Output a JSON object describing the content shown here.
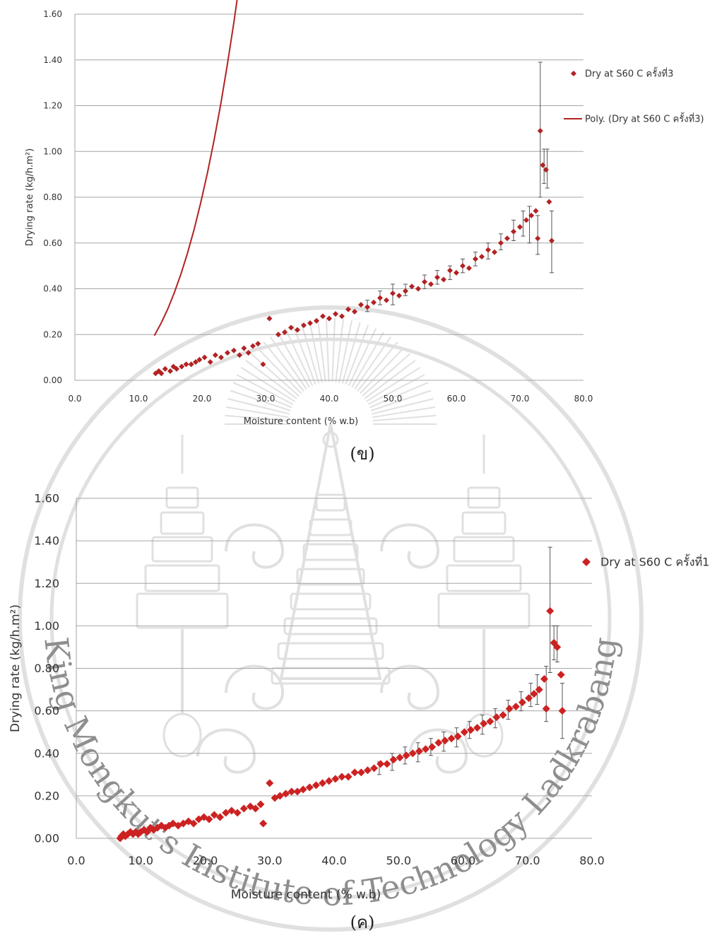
{
  "chart_data": [
    {
      "type": "scatter",
      "panel": "top",
      "caption": "(ข)",
      "title": "",
      "xlabel": "Moisture content (% w.b)",
      "ylabel": "Drying rate (kg/h.m²)",
      "xlim": [
        0,
        80
      ],
      "ylim": [
        0,
        1.6
      ],
      "x_ticks": [
        "0.0",
        "10.0",
        "20.0",
        "30.0",
        "40.0",
        "50.0",
        "60.0",
        "70.0",
        "80.0"
      ],
      "y_ticks": [
        "0.00",
        "0.20",
        "0.40",
        "0.60",
        "0.80",
        "1.00",
        "1.20",
        "1.40",
        "1.60"
      ],
      "grid": "horizontal",
      "legend_position": "right",
      "legend": [
        "Dry at S60 C ครั้งที่3",
        "Poly. (Dry at S60 C ครั้งที่3)"
      ],
      "series": [
        {
          "name": "Dry at S60 C ครั้งที่3",
          "kind": "points",
          "color": "#b22222",
          "points": [
            [
              12.7,
              0.03
            ],
            [
              13.2,
              0.04
            ],
            [
              13.6,
              0.03
            ],
            [
              14.2,
              0.05
            ],
            [
              15.0,
              0.04
            ],
            [
              15.5,
              0.06
            ],
            [
              16.0,
              0.05
            ],
            [
              16.8,
              0.06
            ],
            [
              17.5,
              0.07
            ],
            [
              18.3,
              0.07
            ],
            [
              19.0,
              0.08
            ],
            [
              19.6,
              0.09
            ],
            [
              20.4,
              0.1
            ],
            [
              21.3,
              0.08
            ],
            [
              22.1,
              0.11
            ],
            [
              23.0,
              0.1
            ],
            [
              24.0,
              0.12
            ],
            [
              25.0,
              0.13
            ],
            [
              25.9,
              0.11
            ],
            [
              26.6,
              0.14
            ],
            [
              27.3,
              0.12
            ],
            [
              28.0,
              0.15
            ],
            [
              28.8,
              0.16
            ],
            [
              29.6,
              0.07
            ],
            [
              30.6,
              0.27
            ],
            [
              32.0,
              0.2
            ],
            [
              33.0,
              0.21
            ],
            [
              34.0,
              0.23
            ],
            [
              35.0,
              0.22
            ],
            [
              36.0,
              0.24
            ],
            [
              37.0,
              0.25
            ],
            [
              38.0,
              0.26
            ],
            [
              39.0,
              0.28
            ],
            [
              40.0,
              0.27
            ],
            [
              41.0,
              0.29
            ],
            [
              42.0,
              0.28
            ],
            [
              43.0,
              0.31
            ],
            [
              44.0,
              0.3
            ],
            [
              45.0,
              0.33
            ],
            [
              46.0,
              0.32
            ],
            [
              47.0,
              0.34
            ],
            [
              48.0,
              0.36
            ],
            [
              49.0,
              0.35
            ],
            [
              50.0,
              0.38
            ],
            [
              51.0,
              0.37
            ],
            [
              52.0,
              0.39
            ],
            [
              53.0,
              0.41
            ],
            [
              54.0,
              0.4
            ],
            [
              55.0,
              0.43
            ],
            [
              56.0,
              0.42
            ],
            [
              57.0,
              0.45
            ],
            [
              58.0,
              0.44
            ],
            [
              59.0,
              0.48
            ],
            [
              60.0,
              0.47
            ],
            [
              61.0,
              0.5
            ],
            [
              62.0,
              0.49
            ],
            [
              63.0,
              0.53
            ],
            [
              64.0,
              0.54
            ],
            [
              65.0,
              0.57
            ],
            [
              66.0,
              0.56
            ],
            [
              67.0,
              0.6
            ],
            [
              68.0,
              0.62
            ],
            [
              69.0,
              0.65
            ],
            [
              70.0,
              0.67
            ],
            [
              71.0,
              0.7
            ],
            [
              71.8,
              0.72
            ],
            [
              72.5,
              0.74
            ],
            [
              73.2,
              1.09
            ],
            [
              73.6,
              0.94
            ],
            [
              74.1,
              0.92
            ],
            [
              74.6,
              0.78
            ],
            [
              75.0,
              0.61
            ],
            [
              72.8,
              0.62
            ]
          ]
        },
        {
          "name": "Poly. (Dry at S60 C ครั้งที่3)",
          "kind": "trendline",
          "color": "#b22222",
          "coefficients": [
            0.0001,
            0.0,
            0.0,
            0.0
          ],
          "x_range": [
            12.5,
            75
          ]
        }
      ],
      "error_bars": [
        [
          46,
          0.3,
          0.35
        ],
        [
          48,
          0.33,
          0.39
        ],
        [
          50,
          0.33,
          0.42
        ],
        [
          52,
          0.37,
          0.42
        ],
        [
          55,
          0.4,
          0.46
        ],
        [
          57,
          0.42,
          0.48
        ],
        [
          59,
          0.44,
          0.5
        ],
        [
          61,
          0.47,
          0.53
        ],
        [
          63,
          0.5,
          0.56
        ],
        [
          65,
          0.53,
          0.6
        ],
        [
          67,
          0.57,
          0.64
        ],
        [
          69,
          0.61,
          0.7
        ],
        [
          70.5,
          0.63,
          0.74
        ],
        [
          71.5,
          0.6,
          0.76
        ],
        [
          72.8,
          0.55,
          0.72
        ],
        [
          73.2,
          0.8,
          1.39
        ],
        [
          73.8,
          0.86,
          1.01
        ],
        [
          74.3,
          0.84,
          1.01
        ],
        [
          75.0,
          0.47,
          0.74
        ]
      ]
    },
    {
      "type": "scatter",
      "panel": "bottom",
      "caption": "(ค)",
      "title": "",
      "xlabel": "Moisture content (% w.b)",
      "ylabel": "Drying rate (kg/h.m²)",
      "xlim": [
        0,
        80
      ],
      "ylim": [
        0,
        1.6
      ],
      "x_ticks": [
        "0.0",
        "10.0",
        "20.0",
        "30.0",
        "40.0",
        "50.0",
        "60.0",
        "70.0",
        "80.0"
      ],
      "y_ticks": [
        "0.00",
        "0.20",
        "0.40",
        "0.60",
        "0.80",
        "1.00",
        "1.20",
        "1.40",
        "1.60"
      ],
      "grid": "horizontal",
      "legend_position": "right",
      "legend": [
        "Dry at S60 C ครั้งที่1"
      ],
      "series": [
        {
          "name": "Dry at S60 C ครั้งที่1",
          "kind": "points",
          "color": "#cc2222",
          "points": [
            [
              6.8,
              0.0
            ],
            [
              7.0,
              0.01
            ],
            [
              7.3,
              0.02
            ],
            [
              7.6,
              0.01
            ],
            [
              8.0,
              0.02
            ],
            [
              8.4,
              0.03
            ],
            [
              8.8,
              0.02
            ],
            [
              9.2,
              0.03
            ],
            [
              9.6,
              0.02
            ],
            [
              10.0,
              0.03
            ],
            [
              10.5,
              0.04
            ],
            [
              11.0,
              0.03
            ],
            [
              11.5,
              0.05
            ],
            [
              12.0,
              0.04
            ],
            [
              12.6,
              0.05
            ],
            [
              13.2,
              0.06
            ],
            [
              13.8,
              0.05
            ],
            [
              14.4,
              0.06
            ],
            [
              15.0,
              0.07
            ],
            [
              15.8,
              0.06
            ],
            [
              16.6,
              0.07
            ],
            [
              17.4,
              0.08
            ],
            [
              18.2,
              0.07
            ],
            [
              19.0,
              0.09
            ],
            [
              19.8,
              0.1
            ],
            [
              20.6,
              0.09
            ],
            [
              21.4,
              0.11
            ],
            [
              22.3,
              0.1
            ],
            [
              23.2,
              0.12
            ],
            [
              24.1,
              0.13
            ],
            [
              25.0,
              0.12
            ],
            [
              26.0,
              0.14
            ],
            [
              27.0,
              0.15
            ],
            [
              27.8,
              0.14
            ],
            [
              28.6,
              0.16
            ],
            [
              29.0,
              0.07
            ],
            [
              30.0,
              0.26
            ],
            [
              30.8,
              0.19
            ],
            [
              31.6,
              0.2
            ],
            [
              32.5,
              0.21
            ],
            [
              33.4,
              0.22
            ],
            [
              34.3,
              0.22
            ],
            [
              35.2,
              0.23
            ],
            [
              36.2,
              0.24
            ],
            [
              37.2,
              0.25
            ],
            [
              38.2,
              0.26
            ],
            [
              39.2,
              0.27
            ],
            [
              40.2,
              0.28
            ],
            [
              41.2,
              0.29
            ],
            [
              42.2,
              0.29
            ],
            [
              43.2,
              0.31
            ],
            [
              44.2,
              0.31
            ],
            [
              45.2,
              0.32
            ],
            [
              46.2,
              0.33
            ],
            [
              47.2,
              0.35
            ],
            [
              48.2,
              0.35
            ],
            [
              49.2,
              0.37
            ],
            [
              50.2,
              0.38
            ],
            [
              51.2,
              0.39
            ],
            [
              52.2,
              0.4
            ],
            [
              53.2,
              0.41
            ],
            [
              54.2,
              0.42
            ],
            [
              55.2,
              0.43
            ],
            [
              56.2,
              0.45
            ],
            [
              57.2,
              0.46
            ],
            [
              58.2,
              0.47
            ],
            [
              59.2,
              0.48
            ],
            [
              60.2,
              0.5
            ],
            [
              61.2,
              0.51
            ],
            [
              62.2,
              0.52
            ],
            [
              63.2,
              0.54
            ],
            [
              64.2,
              0.55
            ],
            [
              65.2,
              0.57
            ],
            [
              66.2,
              0.58
            ],
            [
              67.2,
              0.61
            ],
            [
              68.2,
              0.62
            ],
            [
              69.2,
              0.64
            ],
            [
              70.2,
              0.66
            ],
            [
              71.0,
              0.68
            ],
            [
              71.8,
              0.7
            ],
            [
              72.6,
              0.75
            ],
            [
              72.9,
              0.61
            ],
            [
              73.5,
              1.07
            ],
            [
              74.1,
              0.92
            ],
            [
              74.6,
              0.9
            ],
            [
              75.2,
              0.77
            ],
            [
              75.4,
              0.6
            ]
          ]
        }
      ],
      "error_bars": [
        [
          47,
          0.3,
          0.36
        ],
        [
          49,
          0.32,
          0.4
        ],
        [
          51,
          0.35,
          0.43
        ],
        [
          53,
          0.36,
          0.45
        ],
        [
          55,
          0.39,
          0.47
        ],
        [
          57,
          0.41,
          0.5
        ],
        [
          59,
          0.43,
          0.52
        ],
        [
          61,
          0.47,
          0.55
        ],
        [
          63,
          0.49,
          0.58
        ],
        [
          65,
          0.52,
          0.61
        ],
        [
          67,
          0.56,
          0.65
        ],
        [
          69,
          0.6,
          0.69
        ],
        [
          70.5,
          0.62,
          0.73
        ],
        [
          71.5,
          0.63,
          0.77
        ],
        [
          72.9,
          0.55,
          0.81
        ],
        [
          73.5,
          0.78,
          1.37
        ],
        [
          74.1,
          0.84,
          1.0
        ],
        [
          74.6,
          0.83,
          1.0
        ],
        [
          75.4,
          0.47,
          0.73
        ]
      ]
    }
  ],
  "watermark": {
    "text": "King Mongkut's Institute of Technology Ladkrabang",
    "color": "#c8c8c8"
  }
}
